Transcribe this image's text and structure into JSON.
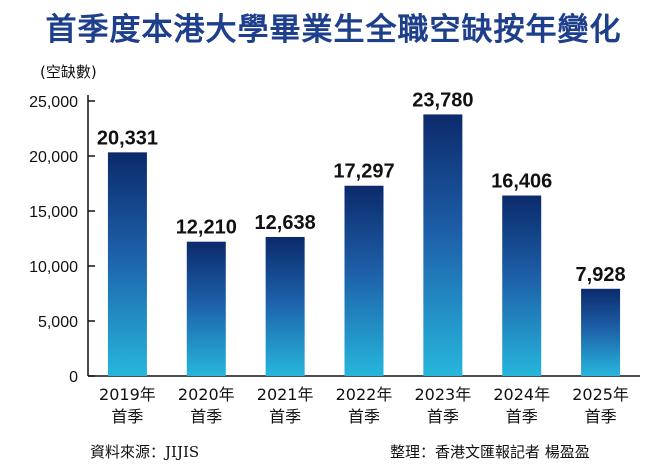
{
  "chart_data": {
    "type": "bar",
    "title": "首季度本港大學畢業生全職空缺按年變化",
    "ylabel": "(空缺數)",
    "xlabel": "",
    "categories": [
      [
        "2019年",
        "首季"
      ],
      [
        "2020年",
        "首季"
      ],
      [
        "2021年",
        "首季"
      ],
      [
        "2022年",
        "首季"
      ],
      [
        "2023年",
        "首季"
      ],
      [
        "2024年",
        "首季"
      ],
      [
        "2025年",
        "首季"
      ]
    ],
    "values": [
      20331,
      12210,
      12638,
      17297,
      23780,
      16406,
      7928
    ],
    "value_labels": [
      "20,331",
      "12,210",
      "12,638",
      "17,297",
      "23,780",
      "16,406",
      "7,928"
    ],
    "yticks": [
      "0",
      "5,000",
      "10,000",
      "15,000",
      "20,000",
      "25,000"
    ],
    "ylim": [
      0,
      25000
    ],
    "grid": false,
    "legend": "none",
    "colors": {
      "bar_top": "#0b2a6b",
      "bar_mid": "#1d5fa8",
      "bar_bottom": "#27b6dc",
      "title": "#1d3f8c"
    }
  },
  "footer": {
    "source": "資料來源：JIJIS",
    "credit": "整理：香港文匯報記者 楊盈盈"
  }
}
